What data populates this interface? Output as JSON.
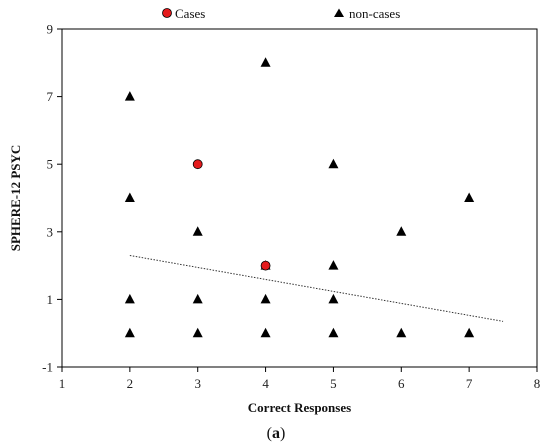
{
  "chart_data": {
    "type": "scatter",
    "xlabel": "Correct Responses",
    "ylabel": "SPHERE-12 PSYC",
    "caption": {
      "open": "(",
      "letter": "a",
      "close": ")"
    },
    "xlim": [
      1,
      8
    ],
    "ylim": [
      -1,
      9
    ],
    "xticks": [
      1,
      2,
      3,
      4,
      5,
      6,
      7,
      8
    ],
    "yticks": [
      -1,
      1,
      3,
      5,
      7,
      9
    ],
    "grid": false,
    "legend_position": "top",
    "series": [
      {
        "name": "Cases",
        "marker": "circle",
        "color": "#e41a1c",
        "points": [
          [
            3,
            5
          ],
          [
            4,
            2
          ]
        ]
      },
      {
        "name": "non-cases",
        "marker": "triangle",
        "color": "#000000",
        "points": [
          [
            2,
            7
          ],
          [
            2,
            4
          ],
          [
            2,
            1
          ],
          [
            2,
            0
          ],
          [
            3,
            3
          ],
          [
            3,
            1
          ],
          [
            3,
            0
          ],
          [
            4,
            8
          ],
          [
            4,
            2
          ],
          [
            4,
            1
          ],
          [
            4,
            0
          ],
          [
            5,
            5
          ],
          [
            5,
            2
          ],
          [
            5,
            1
          ],
          [
            5,
            0
          ],
          [
            6,
            3
          ],
          [
            6,
            0
          ],
          [
            7,
            4
          ],
          [
            7,
            0
          ]
        ]
      }
    ],
    "trendline": {
      "style": "dotted",
      "x": [
        2,
        7.5
      ],
      "y": [
        2.3,
        0.35
      ]
    }
  }
}
